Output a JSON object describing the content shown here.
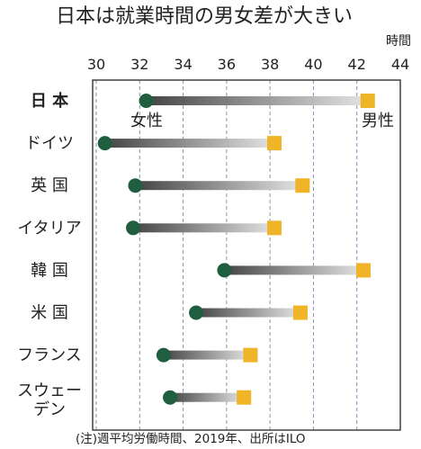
{
  "chart_data": {
    "type": "dumbbell",
    "title": "日本は就業時間の男女差が大きい",
    "unit": "時間",
    "xlim": [
      30,
      44
    ],
    "xticks": [
      30,
      32,
      34,
      36,
      38,
      40,
      42,
      44
    ],
    "grid": true,
    "series": [
      {
        "name": "女性",
        "marker": "circle",
        "color": "#1f5e3f"
      },
      {
        "name": "男性",
        "marker": "square",
        "color": "#f0b428"
      }
    ],
    "categories": [
      {
        "lines": [
          "日 本"
        ],
        "bold": true,
        "female": 32.3,
        "male": 42.5
      },
      {
        "lines": [
          "ドイツ"
        ],
        "female": 30.4,
        "male": 38.2
      },
      {
        "lines": [
          "英 国"
        ],
        "female": 31.8,
        "male": 39.5
      },
      {
        "lines": [
          "イタリア"
        ],
        "female": 31.7,
        "male": 38.2
      },
      {
        "lines": [
          "韓 国"
        ],
        "female": 35.9,
        "male": 42.3
      },
      {
        "lines": [
          "米 国"
        ],
        "female": 34.6,
        "male": 39.4
      },
      {
        "lines": [
          "フランス"
        ],
        "female": 33.1,
        "male": 37.1
      },
      {
        "lines": [
          "スウェー",
          "デン"
        ],
        "female": 33.4,
        "male": 36.8
      }
    ],
    "note": "(注)週平均労働時間、2019年、出所はILO"
  }
}
